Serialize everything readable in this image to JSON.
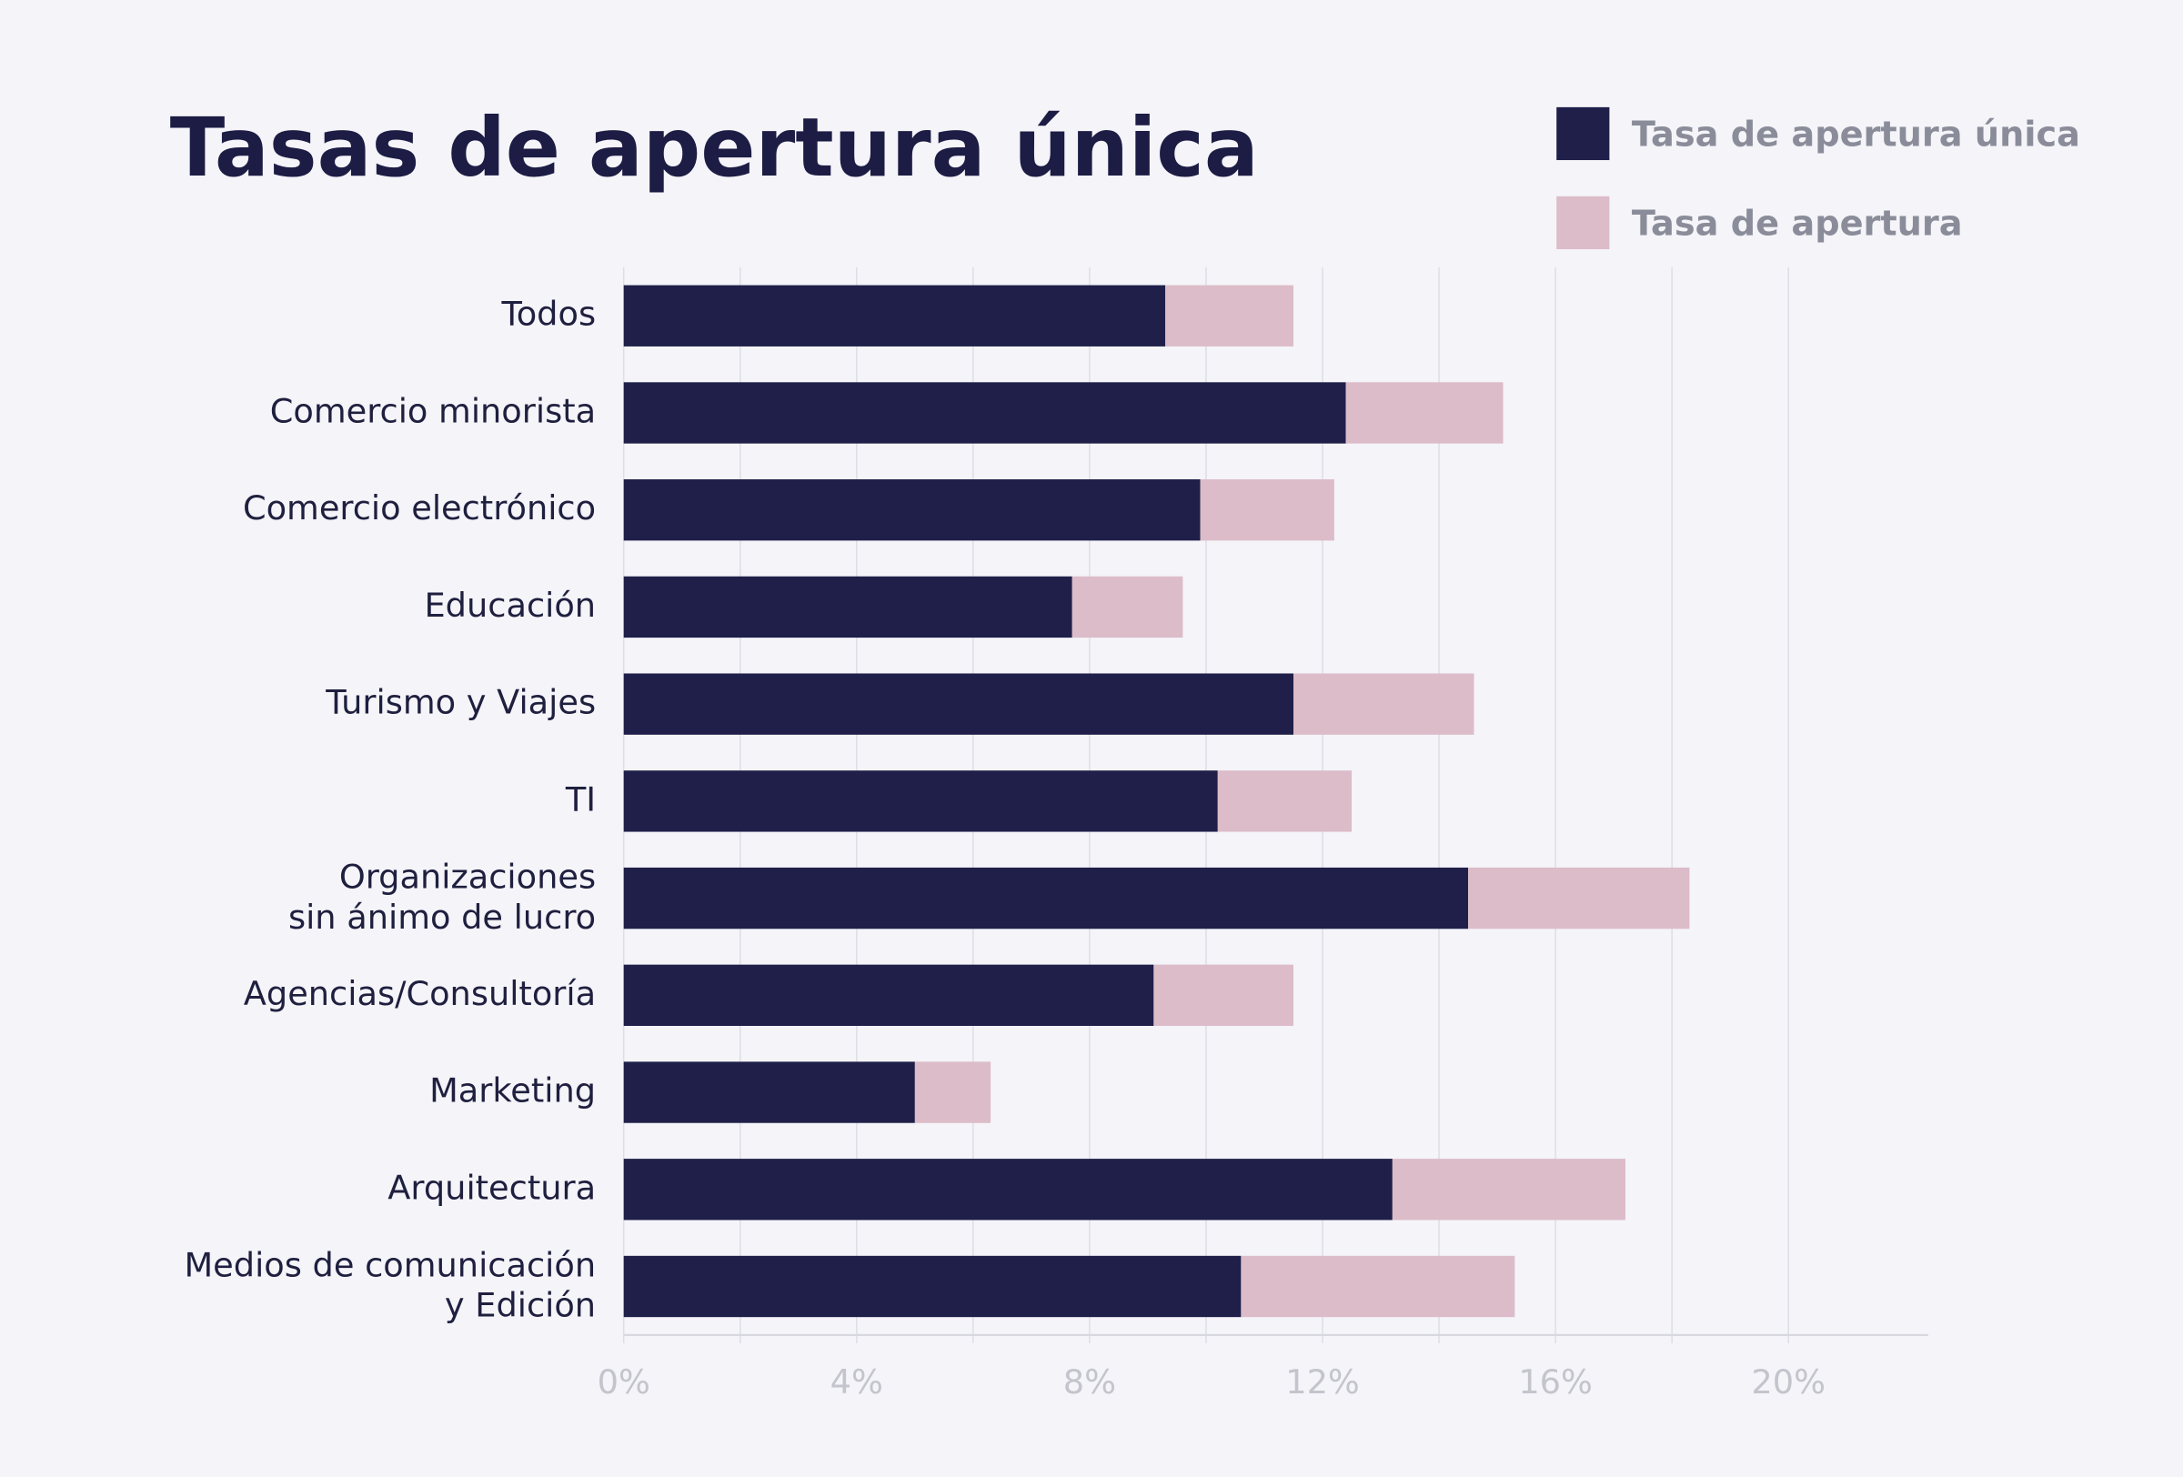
{
  "chart_data": {
    "type": "stacked_barh",
    "title": "Tasas de apertura única",
    "categories": [
      "Todos",
      "Comercio minorista",
      "Comercio electrónico",
      "Educación",
      "Turismo y Viajes",
      "TI",
      "Organizaciones\nsin ánimo de lucro",
      "Agencias/Consultoría",
      "Marketing",
      "Arquitectura",
      "Medios de comunicación\ny Edición"
    ],
    "series": [
      {
        "name": "Tasa de apertura única",
        "color": "#1f1f4a",
        "values": [
          9.3,
          12.4,
          9.9,
          7.7,
          11.5,
          10.2,
          14.5,
          9.1,
          5.0,
          13.2,
          10.6
        ]
      },
      {
        "name": "Tasa de apertura",
        "color": "#dcbcc8",
        "values": [
          2.2,
          2.7,
          2.3,
          1.9,
          3.1,
          2.3,
          3.8,
          2.4,
          1.3,
          4.0,
          4.7
        ]
      }
    ],
    "xlim": [
      0,
      22.4
    ],
    "xticks": [
      {
        "value": 0,
        "label": "0%"
      },
      {
        "value": 4,
        "label": "4%"
      },
      {
        "value": 8,
        "label": "8%"
      },
      {
        "value": 12,
        "label": "12%"
      },
      {
        "value": 16,
        "label": "16%"
      },
      {
        "value": 20,
        "label": "20%"
      }
    ],
    "xgrid_minor": [
      2,
      6,
      10,
      14,
      18
    ],
    "grid": true,
    "legend": "upper right"
  }
}
